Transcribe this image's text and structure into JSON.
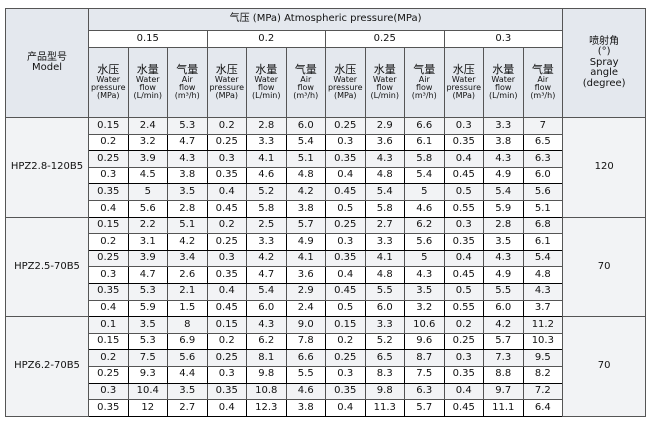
{
  "header": {
    "pressure_title": "气压 (MPa)   Atmospheric pressure(MPa)",
    "model": [
      "产品型号",
      "Model"
    ],
    "spray": [
      "喷射角",
      "(°)",
      "Spray",
      "angle",
      "(degree)"
    ],
    "pressures": [
      "0.15",
      "0.2",
      "0.25",
      "0.3"
    ],
    "columns": [
      [
        "水压",
        "Water",
        "pressure",
        "(MPa)"
      ],
      [
        "水量",
        "Water",
        "flow",
        "(L/min)"
      ],
      [
        "气量",
        "Air",
        "flow",
        "(m³/h)"
      ]
    ]
  },
  "models": [
    {
      "name": "HPZ2.8-120B5",
      "angle": "120",
      "rows": [
        [
          "0.15",
          "2.4",
          "5.3",
          "0.2",
          "2.8",
          "6.0",
          "0.25",
          "2.9",
          "6.6",
          "0.3",
          "3.3",
          "7"
        ],
        [
          "0.2",
          "3.2",
          "4.7",
          "0.25",
          "3.3",
          "5.4",
          "0.3",
          "3.6",
          "6.1",
          "0.35",
          "3.8",
          "6.5"
        ],
        [
          "0.25",
          "3.9",
          "4.3",
          "0.3",
          "4.1",
          "5.1",
          "0.35",
          "4.3",
          "5.8",
          "0.4",
          "4.3",
          "6.3"
        ],
        [
          "0.3",
          "4.5",
          "3.8",
          "0.35",
          "4.6",
          "4.8",
          "0.4",
          "4.8",
          "5.4",
          "0.45",
          "4.9",
          "6.0"
        ],
        [
          "0.35",
          "5",
          "3.5",
          "0.4",
          "5.2",
          "4.2",
          "0.45",
          "5.4",
          "5",
          "0.5",
          "5.4",
          "5.6"
        ],
        [
          "0.4",
          "5.6",
          "2.8",
          "0.45",
          "5.8",
          "3.8",
          "0.5",
          "5.8",
          "4.6",
          "0.55",
          "5.9",
          "5.1"
        ]
      ]
    },
    {
      "name": "HPZ2.5-70B5",
      "angle": "70",
      "rows": [
        [
          "0.15",
          "2.2",
          "5.1",
          "0.2",
          "2.5",
          "5.7",
          "0.25",
          "2.7",
          "6.2",
          "0.3",
          "2.8",
          "6.8"
        ],
        [
          "0.2",
          "3.1",
          "4.2",
          "0.25",
          "3.3",
          "4.9",
          "0.3",
          "3.3",
          "5.6",
          "0.35",
          "3.5",
          "6.1"
        ],
        [
          "0.25",
          "3.9",
          "3.4",
          "0.3",
          "4.2",
          "4.1",
          "0.35",
          "4.1",
          "5",
          "0.4",
          "4.3",
          "5.4"
        ],
        [
          "0.3",
          "4.7",
          "2.6",
          "0.35",
          "4.7",
          "3.6",
          "0.4",
          "4.8",
          "4.3",
          "0.45",
          "4.9",
          "4.8"
        ],
        [
          "0.35",
          "5.3",
          "2.1",
          "0.4",
          "5.4",
          "2.9",
          "0.45",
          "5.5",
          "3.5",
          "0.5",
          "5.5",
          "4.3"
        ],
        [
          "0.4",
          "5.9",
          "1.5",
          "0.45",
          "6.0",
          "2.4",
          "0.5",
          "6.0",
          "3.2",
          "0.55",
          "6.0",
          "3.7"
        ]
      ]
    },
    {
      "name": "HPZ6.2-70B5",
      "angle": "70",
      "rows": [
        [
          "0.1",
          "3.5",
          "8",
          "0.15",
          "4.3",
          "9.0",
          "0.15",
          "3.3",
          "10.6",
          "0.2",
          "4.2",
          "11.2"
        ],
        [
          "0.15",
          "5.3",
          "6.9",
          "0.2",
          "6.2",
          "7.8",
          "0.2",
          "5.2",
          "9.6",
          "0.25",
          "5.7",
          "10.3"
        ],
        [
          "0.2",
          "7.5",
          "5.6",
          "0.25",
          "8.1",
          "6.6",
          "0.25",
          "6.5",
          "8.7",
          "0.3",
          "7.3",
          "9.5"
        ],
        [
          "0.25",
          "9.3",
          "4.4",
          "0.3",
          "9.8",
          "5.5",
          "0.3",
          "8.3",
          "7.5",
          "0.35",
          "8.8",
          "8.2"
        ],
        [
          "0.3",
          "10.4",
          "3.5",
          "0.35",
          "10.8",
          "4.6",
          "0.35",
          "9.8",
          "6.3",
          "0.4",
          "9.7",
          "7.2"
        ],
        [
          "0.35",
          "12",
          "2.7",
          "0.4",
          "12.3",
          "3.8",
          "0.4",
          "11.3",
          "5.7",
          "0.45",
          "11.1",
          "6.4"
        ]
      ]
    }
  ]
}
